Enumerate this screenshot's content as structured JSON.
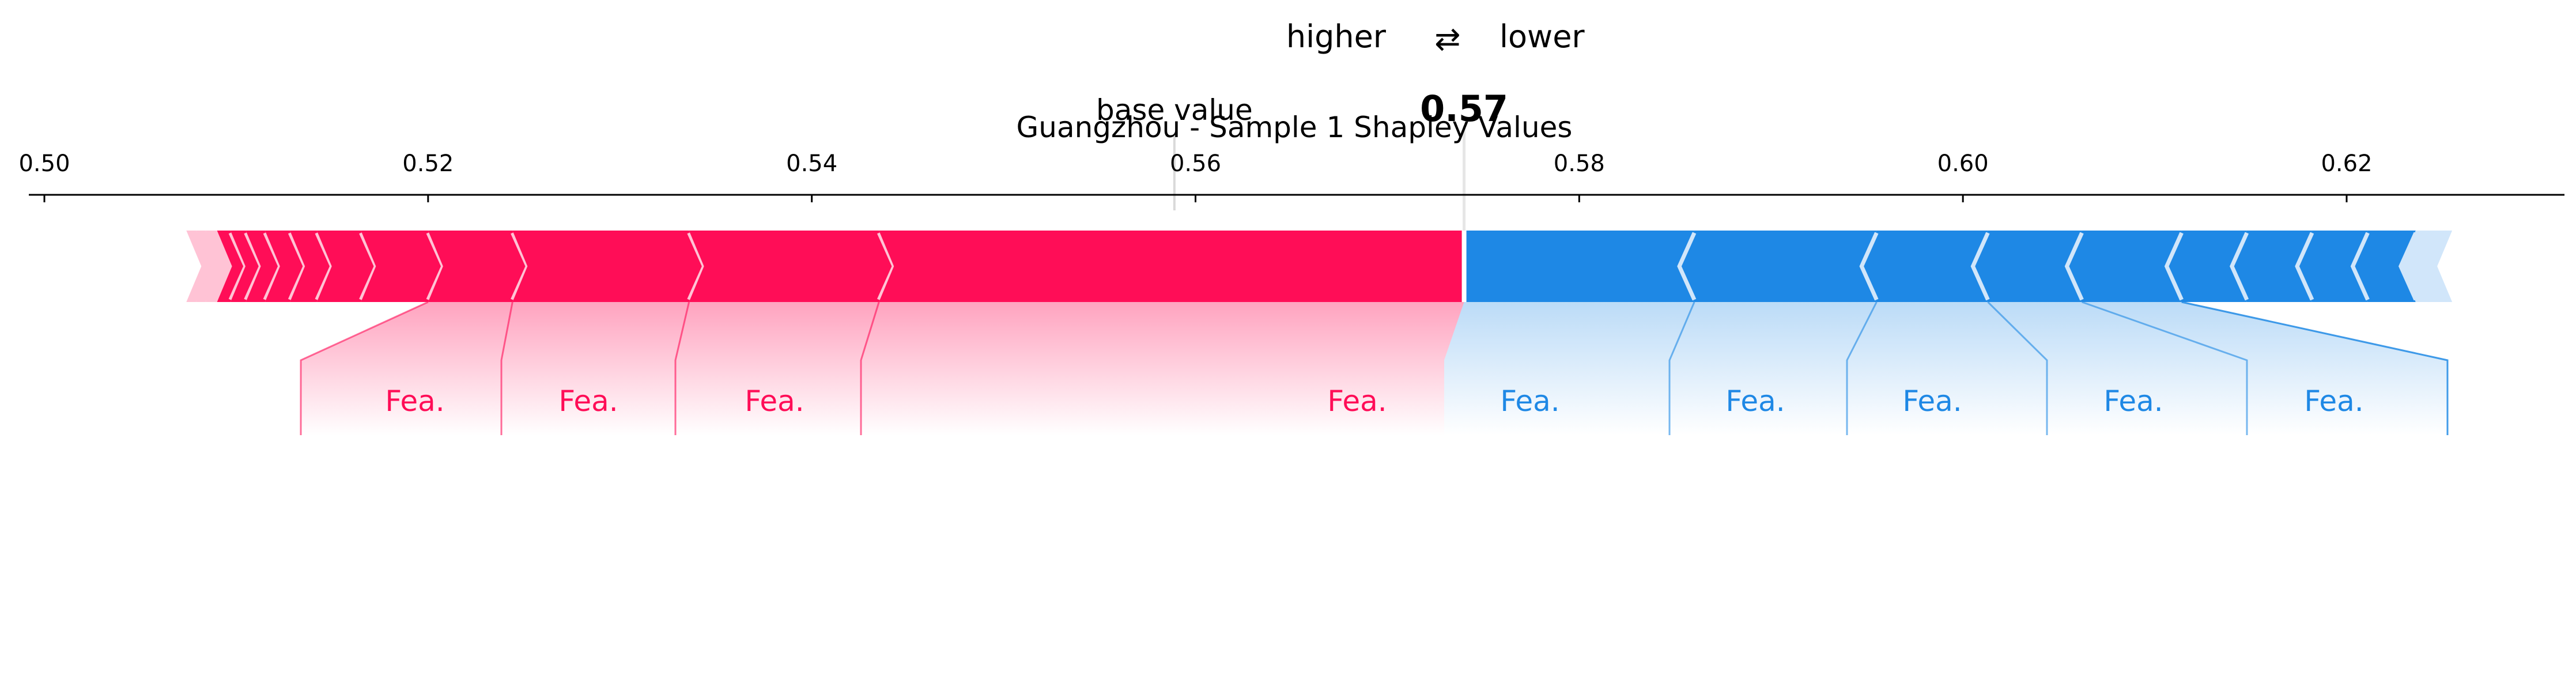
{
  "chart_data": {
    "type": "force",
    "title": "Guangzhou - Sample 1 Shapley Values",
    "legend": {
      "higher_label": "higher",
      "arrow": "⇄",
      "lower_label": "lower",
      "position": "top-center"
    },
    "colors": {
      "positive": "#ff0d57",
      "negative": "#1e88e5",
      "positive_light": "#ffc3d5",
      "negative_light": "#d1e6fa"
    },
    "base_value_label": "base value",
    "base_value": 0.5589,
    "output_value": 0.574,
    "output_label": "0.57",
    "xlim": [
      0.4992,
      0.6335
    ],
    "ticks": [
      0.5,
      0.52,
      0.54,
      0.56,
      0.58,
      0.6,
      0.62
    ],
    "tick_labels": [
      "0.50",
      "0.52",
      "0.54",
      "0.56",
      "0.58",
      "0.60",
      "0.62"
    ],
    "positive_bounds": [
      0.5074,
      0.5079,
      0.5084,
      0.509,
      0.5097,
      0.5105,
      0.5115,
      0.5128,
      0.5142,
      0.5165,
      0.52,
      0.5244,
      0.5336,
      0.5435,
      0.574
    ],
    "negative_bounds": [
      0.574,
      0.586,
      0.5955,
      0.6013,
      0.6062,
      0.6114,
      0.6148,
      0.6182,
      0.6211,
      0.6236,
      0.6255
    ],
    "labeled_features": [
      {
        "label": "Fea.",
        "from": 0.52,
        "to": 0.5244,
        "effect": "positive"
      },
      {
        "label": "Fea.",
        "from": 0.5244,
        "to": 0.5336,
        "effect": "positive"
      },
      {
        "label": "Fea.",
        "from": 0.5336,
        "to": 0.5435,
        "effect": "positive"
      },
      {
        "label": "Fea.",
        "from": 0.5435,
        "to": 0.574,
        "effect": "positive"
      },
      {
        "label": "Fea.",
        "from": 0.574,
        "to": 0.586,
        "effect": "negative"
      },
      {
        "label": "Fea.",
        "from": 0.586,
        "to": 0.5955,
        "effect": "negative"
      },
      {
        "label": "Fea.",
        "from": 0.5955,
        "to": 0.6013,
        "effect": "negative"
      },
      {
        "label": "Fea.",
        "from": 0.6013,
        "to": 0.6062,
        "effect": "negative"
      },
      {
        "label": "Fea.",
        "from": 0.6062,
        "to": 0.6114,
        "effect": "negative"
      }
    ]
  }
}
